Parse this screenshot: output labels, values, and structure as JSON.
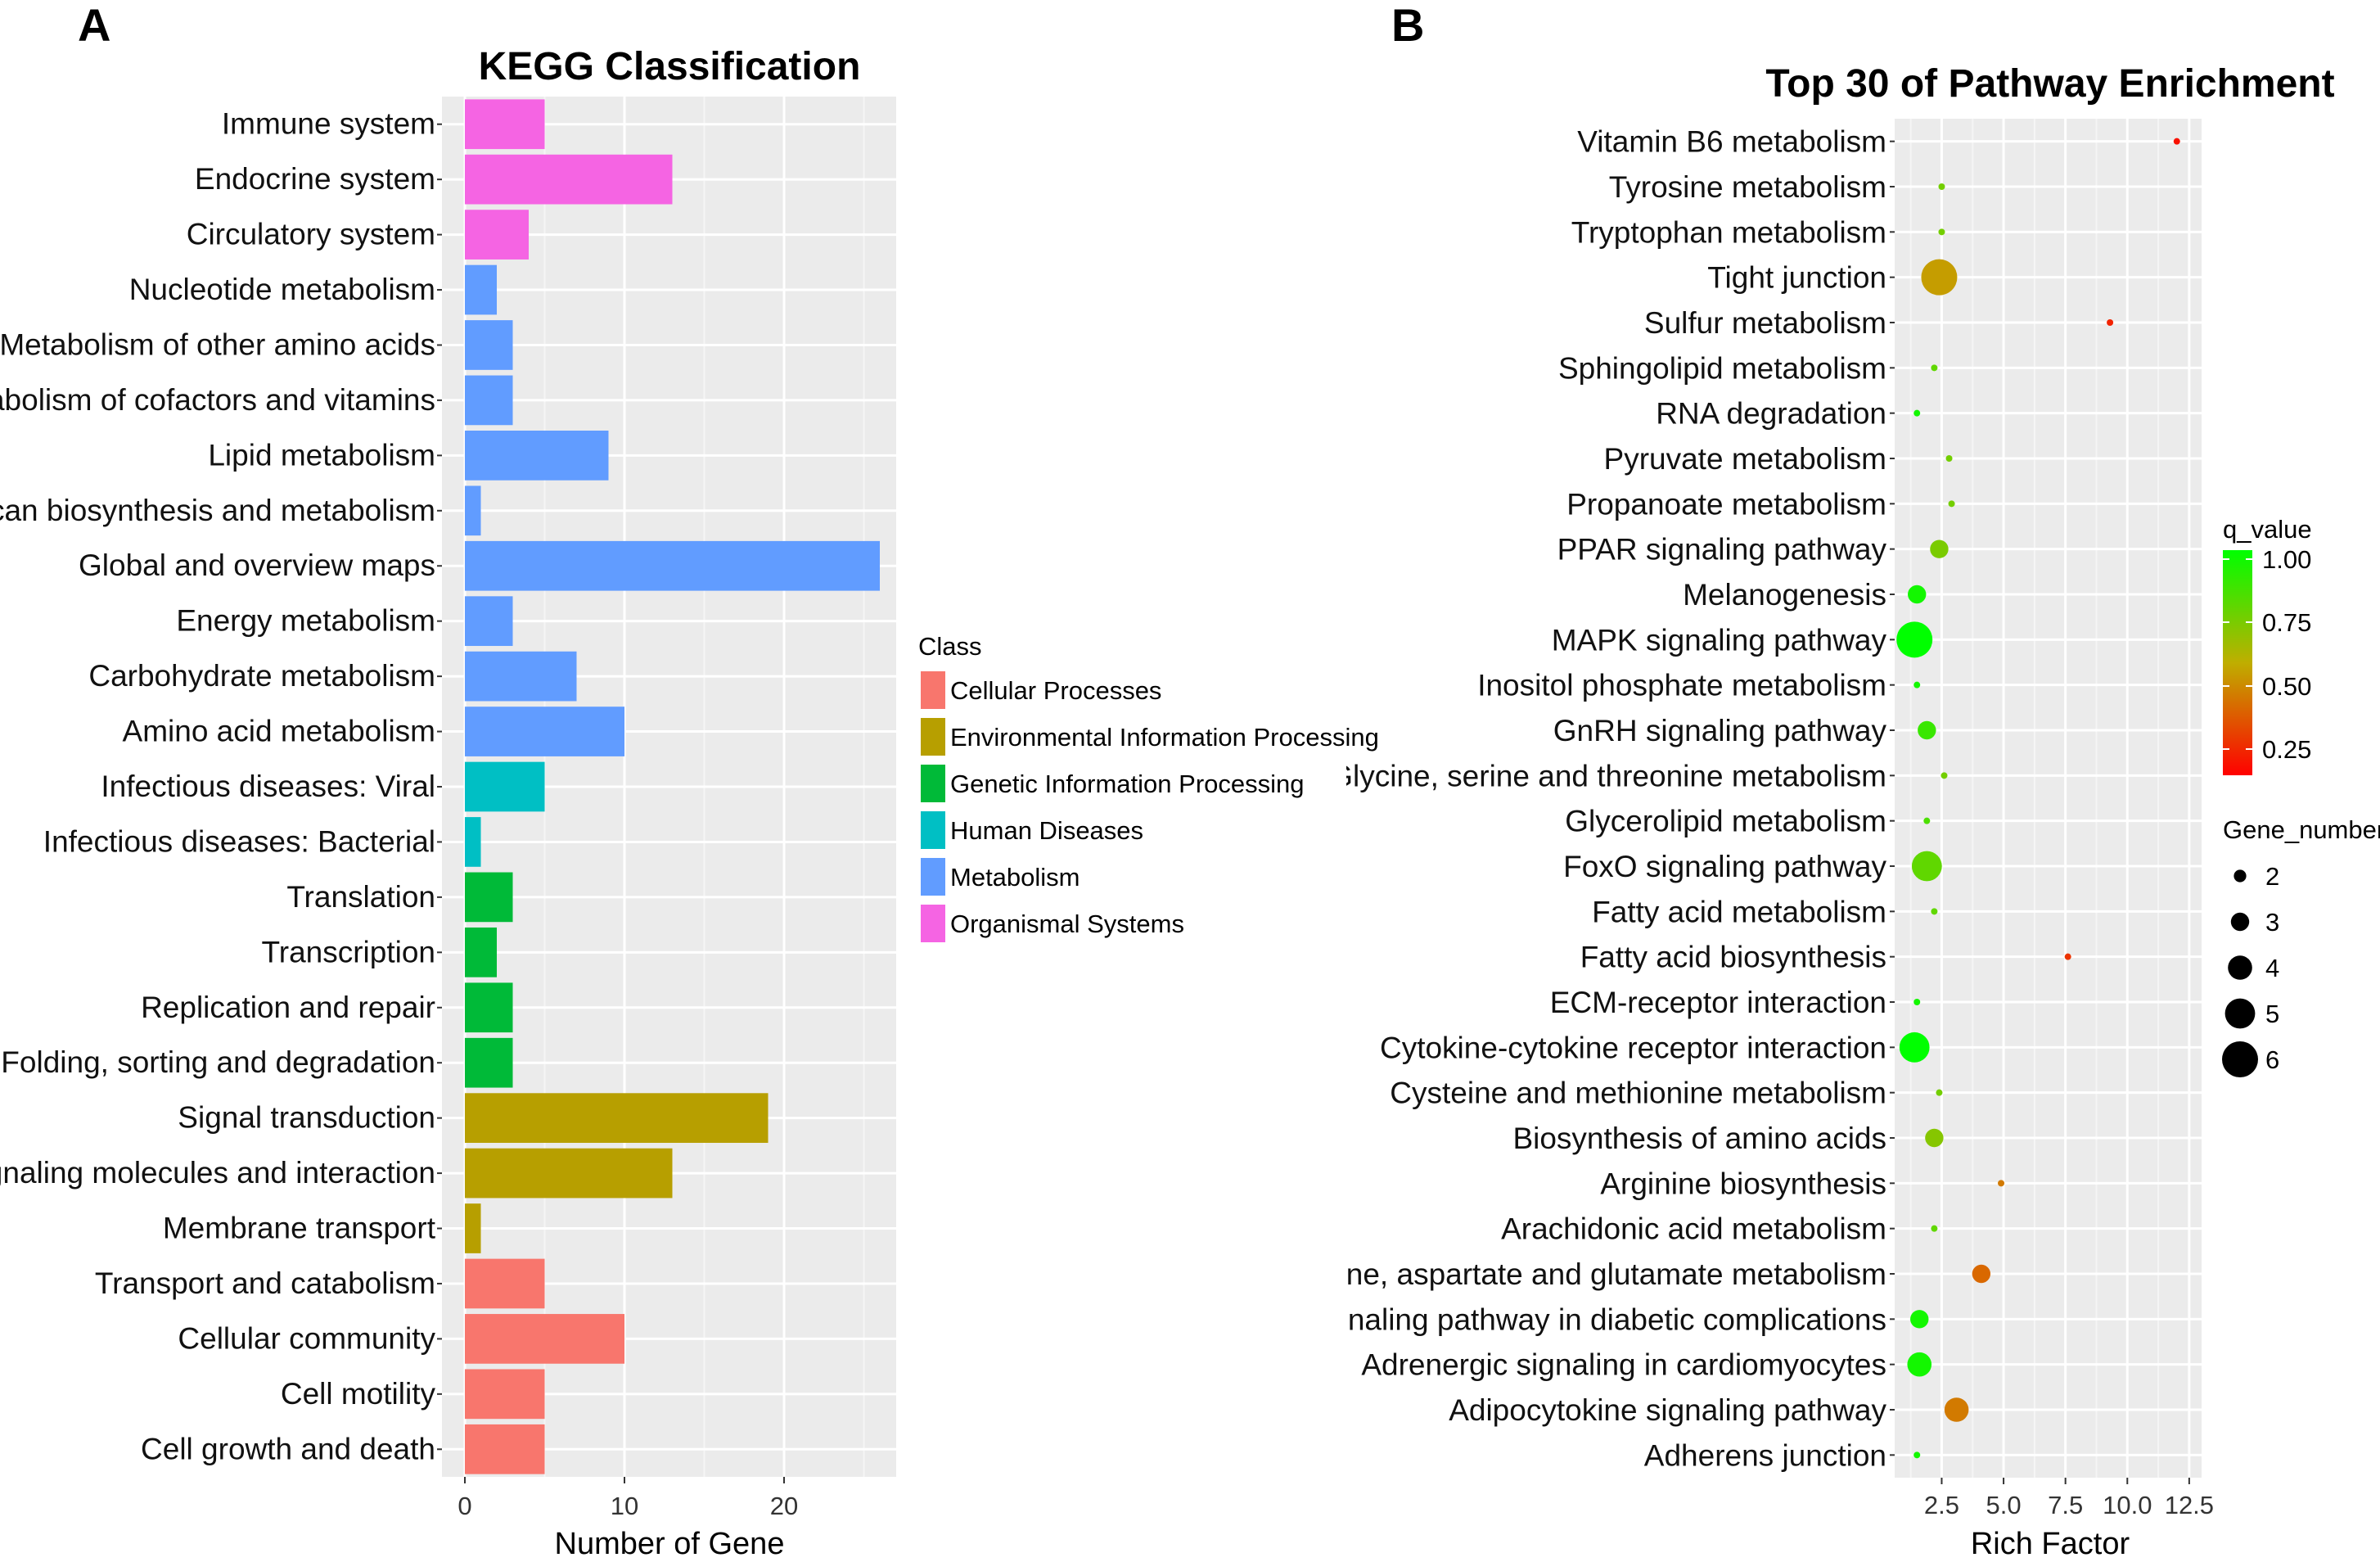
{
  "chart_data": [
    {
      "panel": "A",
      "type": "bar",
      "orientation": "horizontal",
      "title": "KEGG Classification",
      "xlabel": "Number of Gene",
      "ylabel": "",
      "xlim": [
        0,
        27
      ],
      "xticks": [
        0,
        10,
        20
      ],
      "legend_title": "Class",
      "legend_position": "right",
      "classes": [
        {
          "name": "Cellular Processes",
          "color": "#F8766D"
        },
        {
          "name": "Environmental Information Processing",
          "color": "#B79F00"
        },
        {
          "name": "Genetic Information Processing",
          "color": "#00BA38"
        },
        {
          "name": "Human Diseases",
          "color": "#00BFC4"
        },
        {
          "name": "Metabolism",
          "color": "#619CFF"
        },
        {
          "name": "Organismal Systems",
          "color": "#F564E3"
        }
      ],
      "bars": [
        {
          "label": "Immune system",
          "value": 5,
          "class": 5
        },
        {
          "label": "Endocrine system",
          "value": 13,
          "class": 5
        },
        {
          "label": "Circulatory system",
          "value": 4,
          "class": 5
        },
        {
          "label": "Nucleotide metabolism",
          "value": 2,
          "class": 4
        },
        {
          "label": "Metabolism of other amino acids",
          "value": 3,
          "class": 4
        },
        {
          "label": "Metabolism of cofactors and vitamins",
          "value": 3,
          "class": 4
        },
        {
          "label": "Lipid metabolism",
          "value": 9,
          "class": 4
        },
        {
          "label": "Glycan biosynthesis and metabolism",
          "value": 1,
          "class": 4
        },
        {
          "label": "Global and overview maps",
          "value": 26,
          "class": 4
        },
        {
          "label": "Energy metabolism",
          "value": 3,
          "class": 4
        },
        {
          "label": "Carbohydrate metabolism",
          "value": 7,
          "class": 4
        },
        {
          "label": "Amino acid metabolism",
          "value": 10,
          "class": 4
        },
        {
          "label": "Infectious diseases: Viral",
          "value": 5,
          "class": 3
        },
        {
          "label": "Infectious diseases: Bacterial",
          "value": 1,
          "class": 3
        },
        {
          "label": "Translation",
          "value": 3,
          "class": 2
        },
        {
          "label": "Transcription",
          "value": 2,
          "class": 2
        },
        {
          "label": "Replication and repair",
          "value": 3,
          "class": 2
        },
        {
          "label": "Folding, sorting and degradation",
          "value": 3,
          "class": 2
        },
        {
          "label": "Signal transduction",
          "value": 19,
          "class": 1
        },
        {
          "label": "Signaling molecules and interaction",
          "value": 13,
          "class": 1
        },
        {
          "label": "Membrane transport",
          "value": 1,
          "class": 1
        },
        {
          "label": "Transport and catabolism",
          "value": 5,
          "class": 0
        },
        {
          "label": "Cellular community",
          "value": 10,
          "class": 0
        },
        {
          "label": "Cell motility",
          "value": 5,
          "class": 0
        },
        {
          "label": "Cell growth and death",
          "value": 5,
          "class": 0
        }
      ]
    },
    {
      "panel": "B",
      "type": "scatter",
      "title": "Top 30 of Pathway Enrichment",
      "xlabel": "Rich Factor",
      "ylabel": "",
      "xlim": [
        0.6,
        13.0
      ],
      "xticks": [
        "2.5",
        "5.0",
        "7.5",
        "10.0",
        "12.5"
      ],
      "color_legend_title": "q_value",
      "color_ticks": [
        "1.00",
        "0.75",
        "0.50",
        "0.25"
      ],
      "size_legend_title": "Gene_number",
      "size_ticks": [
        2,
        3,
        4,
        5,
        6
      ],
      "legend_position": "right",
      "points": [
        {
          "label": "Vitamin B6 metabolism",
          "x": 12.0,
          "genes": 1,
          "q": 0.05
        },
        {
          "label": "Tyrosine metabolism",
          "x": 2.5,
          "genes": 1,
          "q": 0.7
        },
        {
          "label": "Tryptophan metabolism",
          "x": 2.5,
          "genes": 1,
          "q": 0.7
        },
        {
          "label": "Tight junction",
          "x": 2.4,
          "genes": 6,
          "q": 0.45
        },
        {
          "label": "Sulfur metabolism",
          "x": 9.3,
          "genes": 1,
          "q": 0.1
        },
        {
          "label": "Sphingolipid metabolism",
          "x": 2.2,
          "genes": 1,
          "q": 0.75
        },
        {
          "label": "RNA degradation",
          "x": 1.5,
          "genes": 1,
          "q": 0.95
        },
        {
          "label": "Pyruvate metabolism",
          "x": 2.8,
          "genes": 1,
          "q": 0.7
        },
        {
          "label": "Propanoate metabolism",
          "x": 2.9,
          "genes": 1,
          "q": 0.7
        },
        {
          "label": "PPAR signaling pathway",
          "x": 2.4,
          "genes": 3,
          "q": 0.68
        },
        {
          "label": "Melanogenesis",
          "x": 1.5,
          "genes": 3,
          "q": 0.95
        },
        {
          "label": "MAPK signaling pathway",
          "x": 1.4,
          "genes": 6,
          "q": 1.0
        },
        {
          "label": "Inositol phosphate metabolism",
          "x": 1.5,
          "genes": 1,
          "q": 0.95
        },
        {
          "label": "GnRH signaling pathway",
          "x": 1.9,
          "genes": 3,
          "q": 0.85
        },
        {
          "label": "Glycine, serine and threonine metabolism",
          "x": 2.6,
          "genes": 1,
          "q": 0.7
        },
        {
          "label": "Glycerolipid metabolism",
          "x": 1.9,
          "genes": 1,
          "q": 0.8
        },
        {
          "label": "FoxO signaling pathway",
          "x": 1.9,
          "genes": 5,
          "q": 0.75
        },
        {
          "label": "Fatty acid metabolism",
          "x": 2.2,
          "genes": 1,
          "q": 0.75
        },
        {
          "label": "Fatty acid biosynthesis",
          "x": 7.6,
          "genes": 1,
          "q": 0.15
        },
        {
          "label": "ECM-receptor interaction",
          "x": 1.5,
          "genes": 1,
          "q": 0.95
        },
        {
          "label": "Cytokine-cytokine receptor interaction",
          "x": 1.4,
          "genes": 5,
          "q": 1.0
        },
        {
          "label": "Cysteine and methionine metabolism",
          "x": 2.4,
          "genes": 1,
          "q": 0.7
        },
        {
          "label": "Biosynthesis of amino acids",
          "x": 2.2,
          "genes": 3,
          "q": 0.65
        },
        {
          "label": "Arginine biosynthesis",
          "x": 4.9,
          "genes": 1,
          "q": 0.35
        },
        {
          "label": "Arachidonic acid metabolism",
          "x": 2.2,
          "genes": 1,
          "q": 0.75
        },
        {
          "label": "Alanine, aspartate and glutamate metabolism",
          "x": 4.1,
          "genes": 3,
          "q": 0.3
        },
        {
          "label": "AGE-RAGE signaling pathway in diabetic complications",
          "x": 1.6,
          "genes": 3,
          "q": 0.95
        },
        {
          "label": "Adrenergic signaling in cardiomyocytes",
          "x": 1.6,
          "genes": 4,
          "q": 0.95
        },
        {
          "label": "Adipocytokine signaling pathway",
          "x": 3.1,
          "genes": 4,
          "q": 0.35
        },
        {
          "label": "Adherens junction",
          "x": 1.5,
          "genes": 1,
          "q": 0.95
        }
      ]
    }
  ]
}
